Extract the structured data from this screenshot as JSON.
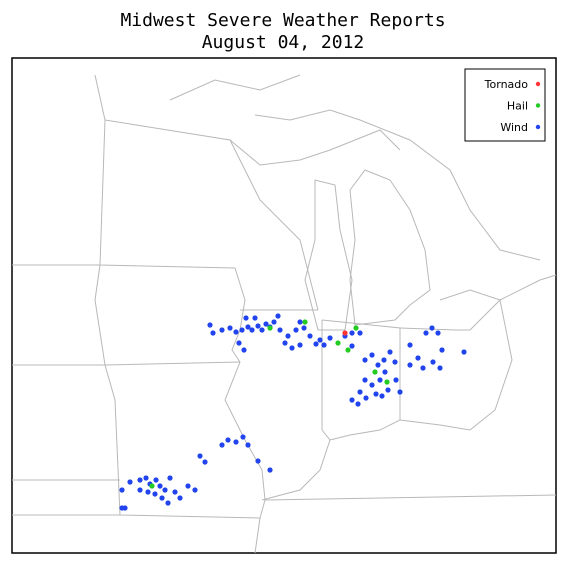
{
  "header": {
    "title": "Midwest Severe Weather Reports",
    "subtitle": "August 04, 2012"
  },
  "legend": {
    "entries": [
      {
        "label": "Tornado",
        "color": "#ff3333"
      },
      {
        "label": "Hail",
        "color": "#22cc22"
      },
      {
        "label": "Wind",
        "color": "#2244ee"
      }
    ]
  }
}
